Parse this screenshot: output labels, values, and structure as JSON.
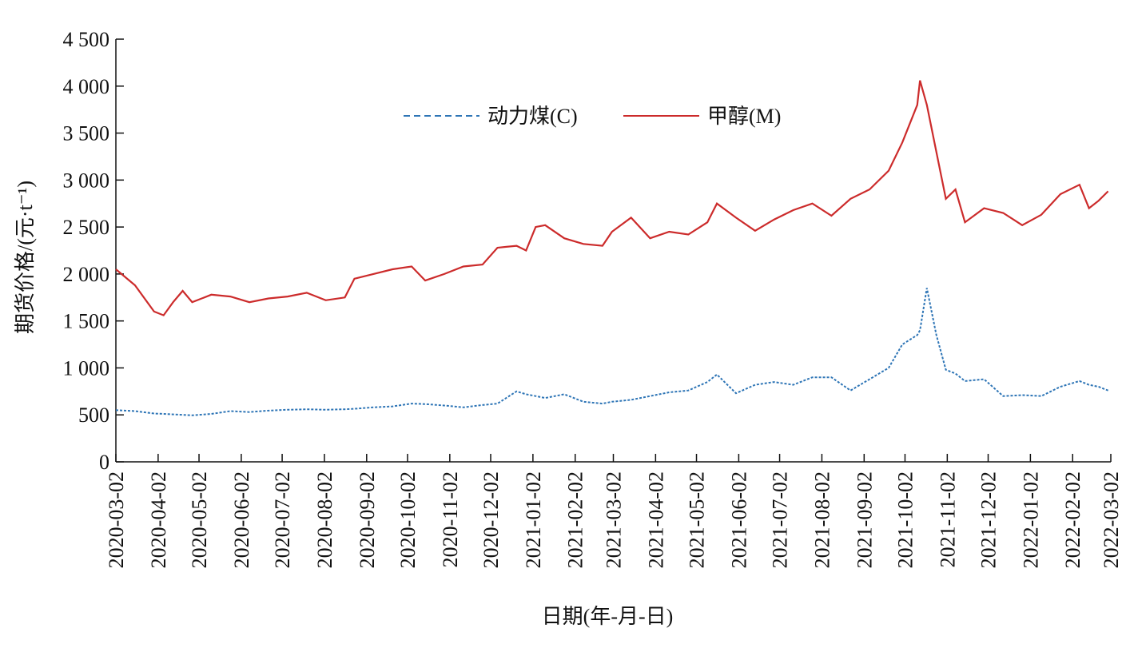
{
  "chart_data": {
    "type": "line",
    "ylabel": "期货价格/(元·t⁻¹)",
    "xlabel": "日期(年-月-日)",
    "x": [
      "2020-03-02",
      "2020-03-16",
      "2020-03-30",
      "2020-04-06",
      "2020-04-13",
      "2020-04-20",
      "2020-04-27",
      "2020-05-11",
      "2020-05-25",
      "2020-06-08",
      "2020-06-22",
      "2020-07-06",
      "2020-07-20",
      "2020-08-03",
      "2020-08-17",
      "2020-08-24",
      "2020-09-07",
      "2020-09-21",
      "2020-10-05",
      "2020-10-15",
      "2020-10-29",
      "2020-11-12",
      "2020-11-26",
      "2020-12-07",
      "2020-12-21",
      "2020-12-28",
      "2021-01-04",
      "2021-01-11",
      "2021-01-25",
      "2021-02-08",
      "2021-02-22",
      "2021-03-01",
      "2021-03-15",
      "2021-03-29",
      "2021-04-12",
      "2021-04-26",
      "2021-05-10",
      "2021-05-17",
      "2021-05-31",
      "2021-06-14",
      "2021-06-28",
      "2021-07-12",
      "2021-07-26",
      "2021-08-09",
      "2021-08-23",
      "2021-09-06",
      "2021-09-20",
      "2021-09-30",
      "2021-10-11",
      "2021-10-13",
      "2021-10-18",
      "2021-10-25",
      "2021-11-01",
      "2021-11-08",
      "2021-11-15",
      "2021-11-29",
      "2021-12-13",
      "2021-12-27",
      "2022-01-10",
      "2022-01-24",
      "2022-02-07",
      "2022-02-14",
      "2022-02-21",
      "2022-02-28"
    ],
    "series": [
      {
        "name": "动力煤(C)",
        "color": "#2e75b6",
        "dash": true,
        "values": [
          550,
          540,
          515,
          510,
          505,
          500,
          495,
          510,
          540,
          530,
          545,
          555,
          560,
          555,
          560,
          565,
          580,
          590,
          620,
          615,
          600,
          580,
          605,
          620,
          750,
          720,
          700,
          680,
          720,
          640,
          620,
          640,
          660,
          700,
          740,
          760,
          850,
          930,
          730,
          820,
          850,
          820,
          900,
          900,
          760,
          880,
          1000,
          1250,
          1350,
          1400,
          1850,
          1350,
          980,
          940,
          860,
          880,
          700,
          710,
          700,
          800,
          860,
          820,
          800,
          760
        ]
      },
      {
        "name": "甲醇(M)",
        "color": "#cc2b2b",
        "dash": false,
        "values": [
          2050,
          1880,
          1600,
          1560,
          1700,
          1820,
          1700,
          1780,
          1760,
          1700,
          1740,
          1760,
          1800,
          1720,
          1750,
          1950,
          2000,
          2050,
          2080,
          1930,
          2000,
          2080,
          2100,
          2280,
          2300,
          2250,
          2500,
          2520,
          2380,
          2320,
          2300,
          2450,
          2600,
          2380,
          2450,
          2420,
          2550,
          2750,
          2600,
          2460,
          2580,
          2680,
          2750,
          2620,
          2800,
          2900,
          3100,
          3400,
          3800,
          4060,
          3800,
          3300,
          2800,
          2900,
          2550,
          2700,
          2650,
          2520,
          2630,
          2850,
          2950,
          2700,
          2780,
          2880
        ]
      }
    ],
    "xlim": [
      "2020-03-02",
      "2022-03-02"
    ],
    "xticks": [
      "2020-03-02",
      "2020-04-02",
      "2020-05-02",
      "2020-06-02",
      "2020-07-02",
      "2020-08-02",
      "2020-09-02",
      "2020-10-02",
      "2020-11-02",
      "2020-12-02",
      "2021-01-02",
      "2021-02-02",
      "2021-03-02",
      "2021-04-02",
      "2021-05-02",
      "2021-06-02",
      "2021-07-02",
      "2021-08-02",
      "2021-09-02",
      "2021-10-02",
      "2021-11-02",
      "2021-12-02",
      "2022-01-02",
      "2022-02-02",
      "2022-03-02"
    ],
    "ylim": [
      0,
      4500
    ],
    "yticks": [
      0,
      500,
      {
        "value": 1000,
        "label": "1 000"
      },
      {
        "value": 1500,
        "label": "1 500"
      },
      {
        "value": 2000,
        "label": "2 000"
      },
      {
        "value": 2500,
        "label": "2 500"
      },
      {
        "value": 3000,
        "label": "3 000"
      },
      {
        "value": 3500,
        "label": "3 500"
      },
      {
        "value": 4000,
        "label": "4 000"
      },
      {
        "value": 4500,
        "label": "4 500"
      }
    ],
    "legend": "top"
  }
}
